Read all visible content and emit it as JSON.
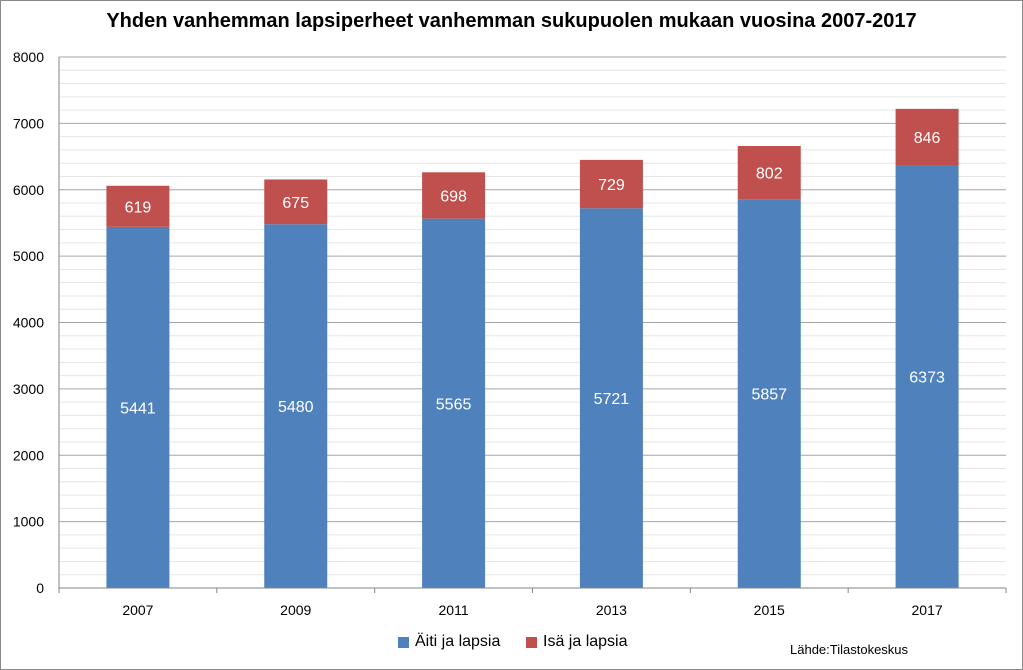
{
  "chart_data": {
    "type": "bar",
    "stacked": true,
    "title": "Yhden vanhemman lapsiperheet vanhemman sukupuolen mukaan vuosina 2007-2017",
    "categories": [
      "2007",
      "2009",
      "2011",
      "2013",
      "2015",
      "2017"
    ],
    "series": [
      {
        "name": "Äiti ja lapsia",
        "color": "#4f81bd",
        "values": [
          5441,
          5480,
          5565,
          5721,
          5857,
          6373
        ]
      },
      {
        "name": "Isä ja lapsia",
        "color": "#c0504d",
        "values": [
          619,
          675,
          698,
          729,
          802,
          846
        ]
      }
    ],
    "ylim": [
      0,
      8000
    ],
    "yticks": [
      0,
      1000,
      2000,
      3000,
      4000,
      5000,
      6000,
      7000,
      8000
    ],
    "grid": true,
    "legend_position": "bottom",
    "xlabel": "",
    "ylabel": ""
  },
  "source_note": "Lähde:Tilastokeskus"
}
